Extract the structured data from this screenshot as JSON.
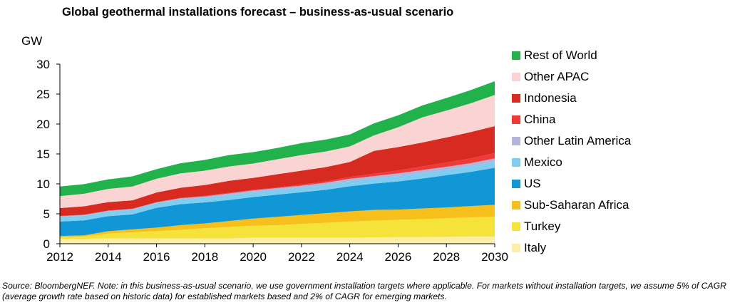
{
  "title": "Global geothermal installations forecast – business-as-usual scenario",
  "source": "Source: BloombergNEF. Note: in this business-as-usual scenario, we use government installation targets where applicable. For markets without installation targets, we assume 5% of CAGR (average growth rate based on historic data) for established markets based and 2% of CAGR for emerging markets.",
  "chart_data": {
    "type": "area",
    "stacked": true,
    "title": "Global geothermal installations forecast – business-as-usual scenario",
    "ylabel": "GW",
    "xlabel": "",
    "x": [
      2012,
      2013,
      2014,
      2015,
      2016,
      2017,
      2018,
      2019,
      2020,
      2021,
      2022,
      2023,
      2024,
      2025,
      2026,
      2027,
      2028,
      2029,
      2030
    ],
    "xticks": [
      "2012",
      "2014",
      "2016",
      "2018",
      "2020",
      "2022",
      "2024",
      "2026",
      "2028",
      "2030"
    ],
    "yticks": [
      "0",
      "5",
      "10",
      "15",
      "20",
      "25",
      "30"
    ],
    "ylim": [
      0,
      30
    ],
    "xlim": [
      2012,
      2030
    ],
    "grid": false,
    "legend_position": "right",
    "series": [
      {
        "name": "Italy",
        "color": "#fbefa8",
        "values": [
          0.8,
          0.8,
          0.9,
          0.9,
          0.9,
          0.9,
          0.9,
          0.9,
          1.0,
          1.0,
          1.0,
          1.0,
          1.0,
          1.05,
          1.1,
          1.1,
          1.15,
          1.2,
          1.2
        ]
      },
      {
        "name": "Turkey",
        "color": "#f6e33a",
        "values": [
          0.3,
          0.4,
          0.8,
          1.0,
          1.2,
          1.4,
          1.7,
          1.9,
          2.0,
          2.1,
          2.3,
          2.5,
          2.7,
          2.8,
          2.9,
          3.0,
          3.1,
          3.2,
          3.3
        ]
      },
      {
        "name": "Sub-Saharan Africa",
        "color": "#f7bf1c",
        "values": [
          0.2,
          0.2,
          0.4,
          0.5,
          0.6,
          0.8,
          0.8,
          1.0,
          1.2,
          1.4,
          1.5,
          1.6,
          1.7,
          1.8,
          1.7,
          1.8,
          1.8,
          1.9,
          2.0
        ]
      },
      {
        "name": "US",
        "color": "#1197d5",
        "values": [
          2.4,
          2.5,
          2.5,
          2.5,
          3.3,
          3.5,
          3.5,
          3.5,
          3.6,
          3.7,
          3.8,
          3.9,
          4.2,
          4.4,
          4.7,
          5.0,
          5.4,
          5.7,
          6.2
        ]
      },
      {
        "name": "Mexico",
        "color": "#7fcdf0",
        "values": [
          0.8,
          0.8,
          0.8,
          0.8,
          0.8,
          0.8,
          0.8,
          0.8,
          0.8,
          0.8,
          0.8,
          0.8,
          0.85,
          0.85,
          0.9,
          0.9,
          0.9,
          0.95,
          1.0
        ]
      },
      {
        "name": "Other Latin America",
        "color": "#b3b3dc",
        "values": [
          0.1,
          0.1,
          0.1,
          0.1,
          0.1,
          0.2,
          0.2,
          0.3,
          0.3,
          0.3,
          0.3,
          0.4,
          0.4,
          0.4,
          0.45,
          0.5,
          0.5,
          0.5,
          0.55
        ]
      },
      {
        "name": "China",
        "color": "#ef3a38",
        "values": [
          0.05,
          0.05,
          0.05,
          0.05,
          0.05,
          0.05,
          0.1,
          0.1,
          0.1,
          0.1,
          0.2,
          0.2,
          0.3,
          0.4,
          0.5,
          0.6,
          0.7,
          0.8,
          0.9
        ]
      },
      {
        "name": "Indonesia",
        "color": "#d72a20",
        "values": [
          1.3,
          1.4,
          1.4,
          1.4,
          1.6,
          1.7,
          1.8,
          2.0,
          2.0,
          2.2,
          2.3,
          2.4,
          2.5,
          3.8,
          3.9,
          4.0,
          4.2,
          4.4,
          4.5
        ]
      },
      {
        "name": "Other APAC",
        "color": "#fad4d2",
        "values": [
          2.0,
          2.1,
          2.2,
          2.3,
          2.3,
          2.4,
          2.4,
          2.4,
          2.4,
          2.5,
          2.6,
          2.6,
          2.6,
          2.6,
          3.3,
          4.2,
          4.5,
          4.8,
          5.2
        ]
      },
      {
        "name": "Rest of World",
        "color": "#22b24c",
        "values": [
          1.6,
          1.6,
          1.6,
          1.7,
          1.6,
          1.7,
          1.8,
          1.9,
          1.9,
          1.9,
          2.0,
          2.0,
          2.0,
          2.0,
          2.0,
          2.0,
          2.1,
          2.2,
          2.3
        ]
      }
    ]
  }
}
